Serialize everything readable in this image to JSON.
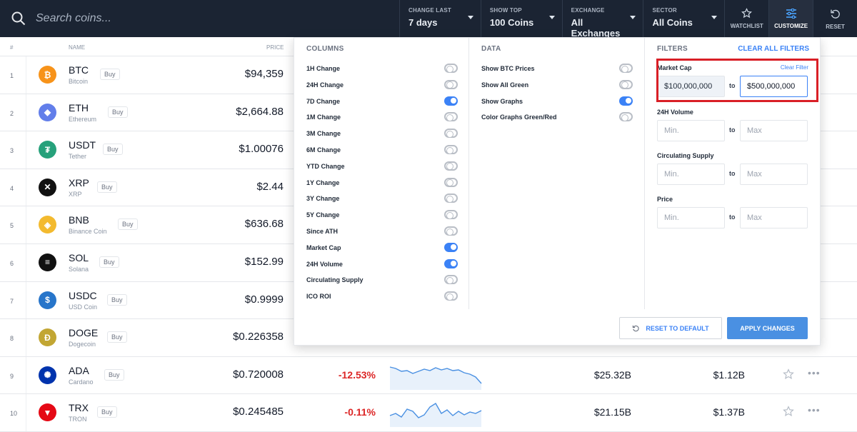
{
  "search": {
    "placeholder": "Search coins..."
  },
  "filters_bar": [
    {
      "label": "CHANGE LAST",
      "value": "7 days"
    },
    {
      "label": "SHOW TOP",
      "value": "100 Coins"
    },
    {
      "label": "EXCHANGE",
      "value": "All Exchanges"
    },
    {
      "label": "SECTOR",
      "value": "All Coins"
    }
  ],
  "toolbar": {
    "watchlist": "WATCHLIST",
    "customize": "CUSTOMIZE",
    "reset": "RESET"
  },
  "table": {
    "headers": {
      "num": "#",
      "name": "NAME",
      "price": "PRICE"
    },
    "buy_label": "Buy",
    "rows": [
      {
        "num": "1",
        "symbol": "BTC",
        "name": "Bitcoin",
        "price": "$94,359",
        "color": "#f7931a",
        "glyph": "₿"
      },
      {
        "num": "2",
        "symbol": "ETH",
        "name": "Ethereum",
        "price": "$2,664.88",
        "color": "#627eea",
        "glyph": "◆"
      },
      {
        "num": "3",
        "symbol": "USDT",
        "name": "Tether",
        "price": "$1.00076",
        "color": "#26a17b",
        "glyph": "₮"
      },
      {
        "num": "4",
        "symbol": "XRP",
        "name": "XRP",
        "price": "$2.44",
        "color": "#111111",
        "glyph": "✕"
      },
      {
        "num": "5",
        "symbol": "BNB",
        "name": "Binance Coin",
        "price": "$636.68",
        "color": "#f3ba2f",
        "glyph": "◈"
      },
      {
        "num": "6",
        "symbol": "SOL",
        "name": "Solana",
        "price": "$152.99",
        "color": "#111111",
        "glyph": "≡"
      },
      {
        "num": "7",
        "symbol": "USDC",
        "name": "USD Coin",
        "price": "$0.9999",
        "color": "#2775ca",
        "glyph": "$"
      },
      {
        "num": "8",
        "symbol": "DOGE",
        "name": "Dogecoin",
        "price": "$0.226358",
        "color": "#c2a633",
        "glyph": "Ð"
      },
      {
        "num": "9",
        "symbol": "ADA",
        "name": "Cardano",
        "price": "$0.720008",
        "change": "-12.53%",
        "mcap": "$25.32B",
        "volume": "$1.12B",
        "color": "#0033ad",
        "glyph": "✺"
      },
      {
        "num": "10",
        "symbol": "TRX",
        "name": "TRON",
        "price": "$0.245485",
        "change": "-0.11%",
        "mcap": "$21.15B",
        "volume": "$1.37B",
        "color": "#e50915",
        "glyph": "▼"
      }
    ]
  },
  "customize": {
    "columns_title": "COLUMNS",
    "columns": [
      {
        "label": "1H Change",
        "on": false
      },
      {
        "label": "24H Change",
        "on": false
      },
      {
        "label": "7D Change",
        "on": true
      },
      {
        "label": "1M Change",
        "on": false
      },
      {
        "label": "3M Change",
        "on": false
      },
      {
        "label": "6M Change",
        "on": false
      },
      {
        "label": "YTD Change",
        "on": false
      },
      {
        "label": "1Y Change",
        "on": false
      },
      {
        "label": "3Y Change",
        "on": false
      },
      {
        "label": "5Y Change",
        "on": false
      },
      {
        "label": "Since ATH",
        "on": false
      },
      {
        "label": "Market Cap",
        "on": true
      },
      {
        "label": "24H Volume",
        "on": true
      },
      {
        "label": "Circulating Supply",
        "on": false
      },
      {
        "label": "ICO ROI",
        "on": false
      }
    ],
    "data_title": "DATA",
    "data": [
      {
        "label": "Show BTC Prices",
        "on": false
      },
      {
        "label": "Show All Green",
        "on": false
      },
      {
        "label": "Show Graphs",
        "on": true
      },
      {
        "label": "Color Graphs Green/Red",
        "on": false
      }
    ],
    "filters_title": "FILTERS",
    "clear_all": "CLEAR ALL FILTERS",
    "clear_filter": "Clear Filter",
    "to_label": "to",
    "filters": [
      {
        "label": "Market Cap",
        "min": "$100,000,000",
        "max": "$500,000,000"
      },
      {
        "label": "24H Volume",
        "min_placeholder": "Min.",
        "max_placeholder": "Max"
      },
      {
        "label": "Circulating Supply",
        "min_placeholder": "Min.",
        "max_placeholder": "Max"
      },
      {
        "label": "Price",
        "min_placeholder": "Min.",
        "max_placeholder": "Max"
      }
    ],
    "reset_default": "RESET TO DEFAULT",
    "apply": "APPLY CHANGES"
  }
}
